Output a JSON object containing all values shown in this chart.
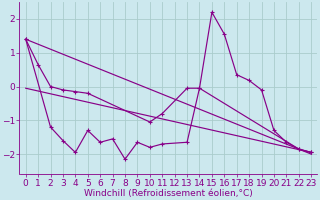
{
  "bg_color": "#cce8ee",
  "grid_color": "#aacccc",
  "line_color": "#880088",
  "xlabel": "Windchill (Refroidissement éolien,°C)",
  "xlim": [
    -0.5,
    23.5
  ],
  "ylim": [
    -2.6,
    2.5
  ],
  "yticks": [
    -2,
    -1,
    0,
    1,
    2
  ],
  "xticks": [
    0,
    1,
    2,
    3,
    4,
    5,
    6,
    7,
    8,
    9,
    10,
    11,
    12,
    13,
    14,
    15,
    16,
    17,
    18,
    19,
    20,
    21,
    22,
    23
  ],
  "series1_x": [
    0,
    1,
    2,
    3,
    4,
    5,
    10,
    11,
    13,
    14,
    15,
    16,
    17,
    18,
    19,
    20,
    21,
    22,
    23
  ],
  "series1_y": [
    1.4,
    0.65,
    0.0,
    -0.1,
    -0.15,
    -0.2,
    -1.05,
    -0.8,
    -0.05,
    -0.05,
    2.2,
    1.55,
    0.35,
    0.18,
    -0.1,
    -1.3,
    -1.65,
    -1.85,
    -1.95
  ],
  "series2_x": [
    0,
    2,
    3,
    4,
    5,
    6,
    7,
    8,
    9,
    10,
    11,
    13,
    14,
    22,
    23
  ],
  "series2_y": [
    1.4,
    -1.2,
    -1.6,
    -1.95,
    -1.3,
    -1.65,
    -1.55,
    -2.15,
    -1.65,
    -1.8,
    -1.7,
    -1.65,
    -0.05,
    -1.85,
    -1.95
  ],
  "series3_x": [
    0,
    23
  ],
  "series3_y": [
    1.4,
    -2.0
  ],
  "series4_x": [
    0,
    23
  ],
  "series4_y": [
    -0.05,
    -1.95
  ],
  "xlabel_fontsize": 6.5,
  "tick_fontsize": 6.5
}
